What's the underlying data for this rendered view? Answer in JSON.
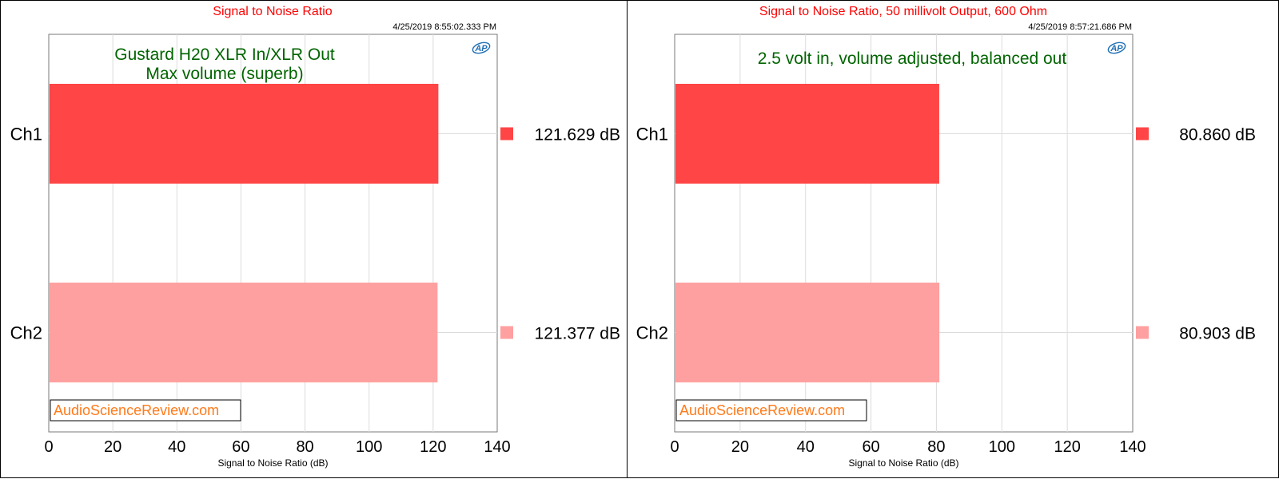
{
  "chart_data": [
    {
      "type": "bar",
      "orientation": "horizontal",
      "title": "Signal to Noise Ratio",
      "timestamp": "4/25/2019 8:55:02.333 PM",
      "annotation": [
        "Gustard H20 XLR In/XLR Out",
        "Max volume (superb)"
      ],
      "watermark": "AudioScienceReview.com",
      "logo": "AP",
      "categories": [
        "Ch1",
        "Ch2"
      ],
      "values": [
        121.629,
        121.377
      ],
      "value_labels": [
        "121.629  dB",
        "121.377  dB"
      ],
      "colors": [
        "#ff4545",
        "#ffa0a0"
      ],
      "xlabel": "Signal to Noise Ratio (dB)",
      "xlim": [
        0,
        140
      ],
      "xticks": [
        0,
        20,
        40,
        60,
        80,
        100,
        120,
        140
      ],
      "legend_placement": "right",
      "grid": true
    },
    {
      "type": "bar",
      "orientation": "horizontal",
      "title": "Signal to Noise Ratio, 50 millivolt Output, 600 Ohm",
      "timestamp": "4/25/2019 8:57:21.686 PM",
      "annotation": [
        "2.5 volt in, volume adjusted, balanced out"
      ],
      "watermark": "AudioScienceReview.com",
      "logo": "AP",
      "categories": [
        "Ch1",
        "Ch2"
      ],
      "values": [
        80.86,
        80.903
      ],
      "value_labels": [
        "80.860  dB",
        "80.903  dB"
      ],
      "colors": [
        "#ff4545",
        "#ffa0a0"
      ],
      "xlabel": "Signal to Noise Ratio (dB)",
      "xlim": [
        0,
        140
      ],
      "xticks": [
        0,
        20,
        40,
        60,
        80,
        100,
        120,
        140
      ],
      "legend_placement": "right",
      "grid": true
    }
  ]
}
